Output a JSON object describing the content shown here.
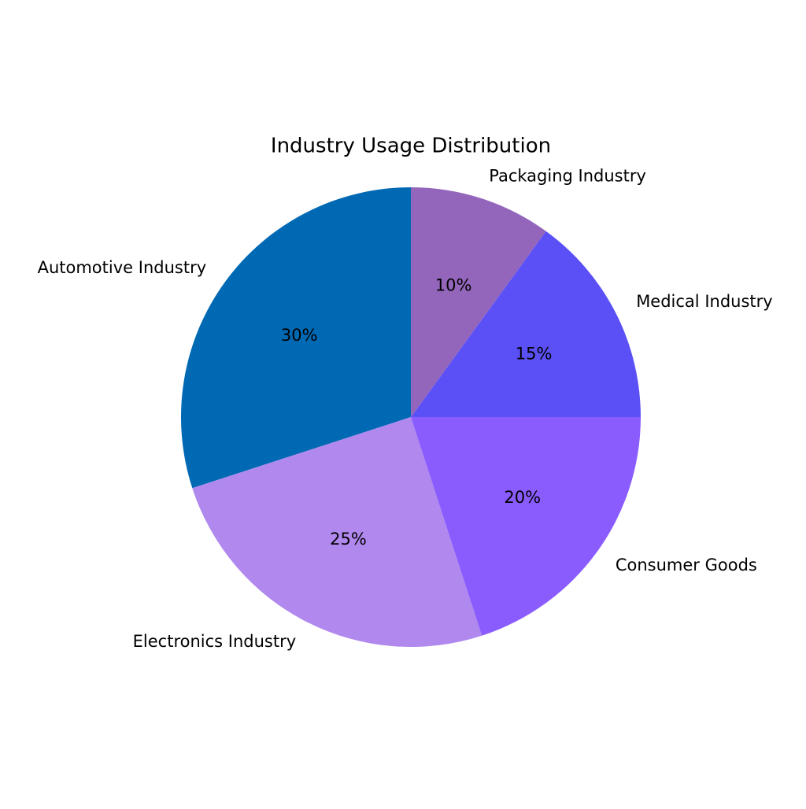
{
  "chart_data": {
    "type": "pie",
    "title": "Industry Usage Distribution",
    "categories": [
      "Automotive Industry",
      "Electronics Industry",
      "Consumer Goods",
      "Medical Industry",
      "Packaging Industry"
    ],
    "values": [
      30,
      25,
      20,
      15,
      10
    ],
    "value_labels": [
      "30%",
      "25%",
      "20%",
      "15%",
      "10%"
    ],
    "colors": [
      "#0069b4",
      "#b088ee",
      "#8a5cfe",
      "#5b50f5",
      "#9366bc"
    ]
  }
}
